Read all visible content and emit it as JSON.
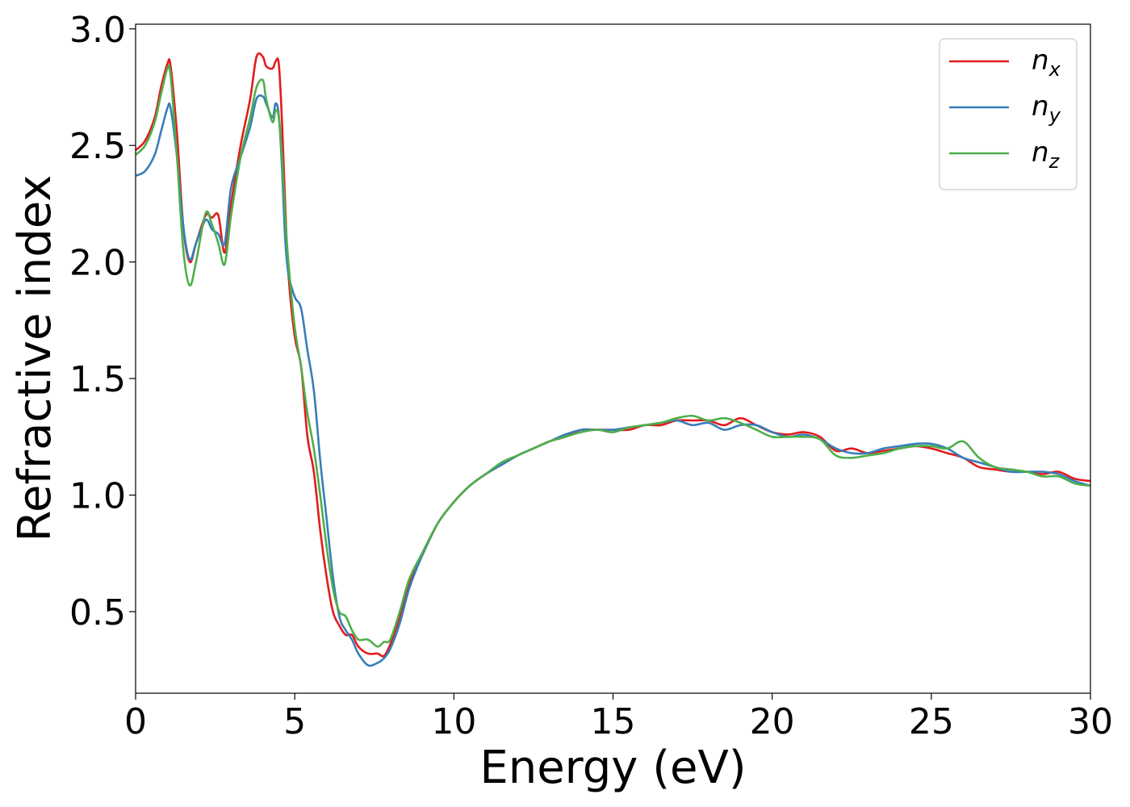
{
  "chart_data": {
    "type": "line",
    "title": "",
    "xlabel": "Energy (eV)",
    "ylabel": "Refractive index",
    "xlim": [
      0,
      30
    ],
    "ylim": [
      0.15,
      3.02
    ],
    "xticks": [
      0,
      5,
      10,
      15,
      20,
      25,
      30
    ],
    "yticks": [
      0.5,
      1.0,
      1.5,
      2.0,
      2.5,
      3.0
    ],
    "xtick_labels": [
      "0",
      "5",
      "10",
      "15",
      "20",
      "25",
      "30"
    ],
    "ytick_labels": [
      "0.5",
      "1.0",
      "1.5",
      "2.0",
      "2.5",
      "3.0"
    ],
    "grid": false,
    "legend_position": "top-right",
    "series": [
      {
        "name": "n_x",
        "label_base": "n",
        "label_sub": "x",
        "color": "#e41a1c",
        "x": [
          0,
          0.3,
          0.6,
          0.8,
          1.0,
          1.1,
          1.3,
          1.5,
          1.7,
          1.9,
          2.2,
          2.4,
          2.6,
          2.8,
          3.0,
          3.3,
          3.6,
          3.8,
          4.0,
          4.1,
          4.3,
          4.4,
          4.5,
          4.6,
          4.7,
          4.8,
          5.0,
          5.2,
          5.4,
          5.6,
          5.8,
          6.0,
          6.2,
          6.4,
          6.6,
          6.8,
          7.0,
          7.3,
          7.6,
          7.8,
          8.0,
          8.3,
          8.6,
          9.0,
          9.5,
          10.0,
          10.5,
          11.0,
          11.5,
          12.0,
          12.5,
          13.0,
          13.5,
          14.0,
          14.5,
          15.0,
          15.5,
          16.0,
          16.5,
          17.0,
          17.5,
          18.0,
          18.5,
          19.0,
          19.5,
          20.0,
          20.5,
          21.0,
          21.5,
          22.0,
          22.5,
          23.0,
          23.5,
          24.0,
          24.5,
          25.0,
          25.5,
          26.0,
          26.5,
          27.0,
          27.5,
          28.0,
          28.5,
          29.0,
          29.5,
          30.0
        ],
        "y": [
          2.48,
          2.52,
          2.62,
          2.75,
          2.85,
          2.84,
          2.55,
          2.15,
          2.0,
          2.08,
          2.2,
          2.19,
          2.2,
          2.04,
          2.25,
          2.5,
          2.7,
          2.88,
          2.88,
          2.84,
          2.83,
          2.86,
          2.85,
          2.6,
          2.25,
          1.95,
          1.68,
          1.55,
          1.25,
          1.1,
          0.85,
          0.65,
          0.5,
          0.44,
          0.4,
          0.4,
          0.35,
          0.32,
          0.32,
          0.31,
          0.36,
          0.48,
          0.62,
          0.74,
          0.88,
          0.97,
          1.04,
          1.09,
          1.13,
          1.17,
          1.2,
          1.23,
          1.25,
          1.28,
          1.28,
          1.28,
          1.28,
          1.3,
          1.3,
          1.32,
          1.32,
          1.32,
          1.3,
          1.33,
          1.3,
          1.27,
          1.26,
          1.27,
          1.25,
          1.19,
          1.2,
          1.18,
          1.19,
          1.2,
          1.21,
          1.2,
          1.18,
          1.16,
          1.12,
          1.11,
          1.1,
          1.1,
          1.09,
          1.1,
          1.07,
          1.06
        ]
      },
      {
        "name": "n_y",
        "label_base": "n",
        "label_sub": "y",
        "color": "#377eb8",
        "x": [
          0,
          0.3,
          0.6,
          0.8,
          1.0,
          1.1,
          1.3,
          1.5,
          1.7,
          1.9,
          2.2,
          2.4,
          2.6,
          2.8,
          3.0,
          3.3,
          3.6,
          3.8,
          4.0,
          4.1,
          4.3,
          4.4,
          4.5,
          4.6,
          4.7,
          4.8,
          5.0,
          5.2,
          5.4,
          5.6,
          5.8,
          6.0,
          6.2,
          6.4,
          6.6,
          6.8,
          7.0,
          7.3,
          7.6,
          7.8,
          8.0,
          8.3,
          8.6,
          9.0,
          9.5,
          10.0,
          10.5,
          11.0,
          11.5,
          12.0,
          12.5,
          13.0,
          13.5,
          14.0,
          14.5,
          15.0,
          15.5,
          16.0,
          16.5,
          17.0,
          17.5,
          18.0,
          18.5,
          19.0,
          19.5,
          20.0,
          20.5,
          21.0,
          21.5,
          22.0,
          22.5,
          23.0,
          23.5,
          24.0,
          24.5,
          25.0,
          25.5,
          26.0,
          26.5,
          27.0,
          27.5,
          28.0,
          28.5,
          29.0,
          29.5,
          30.0
        ],
        "y": [
          2.37,
          2.39,
          2.46,
          2.56,
          2.66,
          2.66,
          2.45,
          2.15,
          2.01,
          2.08,
          2.18,
          2.14,
          2.12,
          2.08,
          2.32,
          2.45,
          2.58,
          2.7,
          2.71,
          2.68,
          2.62,
          2.68,
          2.63,
          2.4,
          2.1,
          1.95,
          1.85,
          1.8,
          1.62,
          1.45,
          1.15,
          0.9,
          0.65,
          0.48,
          0.42,
          0.38,
          0.32,
          0.27,
          0.28,
          0.3,
          0.34,
          0.45,
          0.6,
          0.74,
          0.88,
          0.97,
          1.04,
          1.09,
          1.13,
          1.17,
          1.2,
          1.23,
          1.26,
          1.28,
          1.28,
          1.28,
          1.29,
          1.3,
          1.31,
          1.32,
          1.3,
          1.31,
          1.28,
          1.3,
          1.3,
          1.27,
          1.25,
          1.26,
          1.24,
          1.2,
          1.18,
          1.18,
          1.2,
          1.21,
          1.22,
          1.22,
          1.2,
          1.16,
          1.14,
          1.12,
          1.1,
          1.1,
          1.1,
          1.09,
          1.06,
          1.04
        ]
      },
      {
        "name": "n_z",
        "label_base": "n",
        "label_sub": "z",
        "color": "#4daf4a",
        "x": [
          0,
          0.3,
          0.6,
          0.8,
          1.0,
          1.1,
          1.3,
          1.5,
          1.7,
          1.9,
          2.2,
          2.4,
          2.6,
          2.8,
          3.0,
          3.3,
          3.6,
          3.8,
          4.0,
          4.1,
          4.3,
          4.4,
          4.5,
          4.6,
          4.7,
          4.8,
          5.0,
          5.2,
          5.4,
          5.6,
          5.8,
          6.0,
          6.2,
          6.4,
          6.6,
          6.8,
          7.0,
          7.3,
          7.6,
          7.8,
          8.0,
          8.3,
          8.6,
          9.0,
          9.5,
          10.0,
          10.5,
          11.0,
          11.5,
          12.0,
          12.5,
          13.0,
          13.5,
          14.0,
          14.5,
          15.0,
          15.5,
          16.0,
          16.5,
          17.0,
          17.5,
          18.0,
          18.5,
          19.0,
          19.5,
          20.0,
          20.5,
          21.0,
          21.5,
          22.0,
          22.5,
          23.0,
          23.5,
          24.0,
          24.5,
          25.0,
          25.5,
          26.0,
          26.5,
          27.0,
          27.5,
          28.0,
          28.5,
          29.0,
          29.5,
          30.0
        ],
        "y": [
          2.46,
          2.5,
          2.6,
          2.72,
          2.83,
          2.8,
          2.45,
          2.05,
          1.9,
          2.0,
          2.21,
          2.16,
          2.08,
          1.99,
          2.2,
          2.45,
          2.62,
          2.75,
          2.78,
          2.7,
          2.6,
          2.65,
          2.62,
          2.45,
          2.2,
          2.0,
          1.72,
          1.55,
          1.35,
          1.2,
          1.0,
          0.78,
          0.6,
          0.5,
          0.48,
          0.42,
          0.38,
          0.38,
          0.35,
          0.37,
          0.38,
          0.5,
          0.64,
          0.75,
          0.88,
          0.97,
          1.04,
          1.09,
          1.14,
          1.17,
          1.2,
          1.23,
          1.25,
          1.27,
          1.28,
          1.27,
          1.29,
          1.3,
          1.31,
          1.33,
          1.34,
          1.32,
          1.33,
          1.31,
          1.28,
          1.25,
          1.25,
          1.25,
          1.24,
          1.17,
          1.16,
          1.17,
          1.18,
          1.2,
          1.21,
          1.21,
          1.2,
          1.23,
          1.16,
          1.12,
          1.11,
          1.1,
          1.08,
          1.08,
          1.05,
          1.04
        ]
      }
    ]
  }
}
